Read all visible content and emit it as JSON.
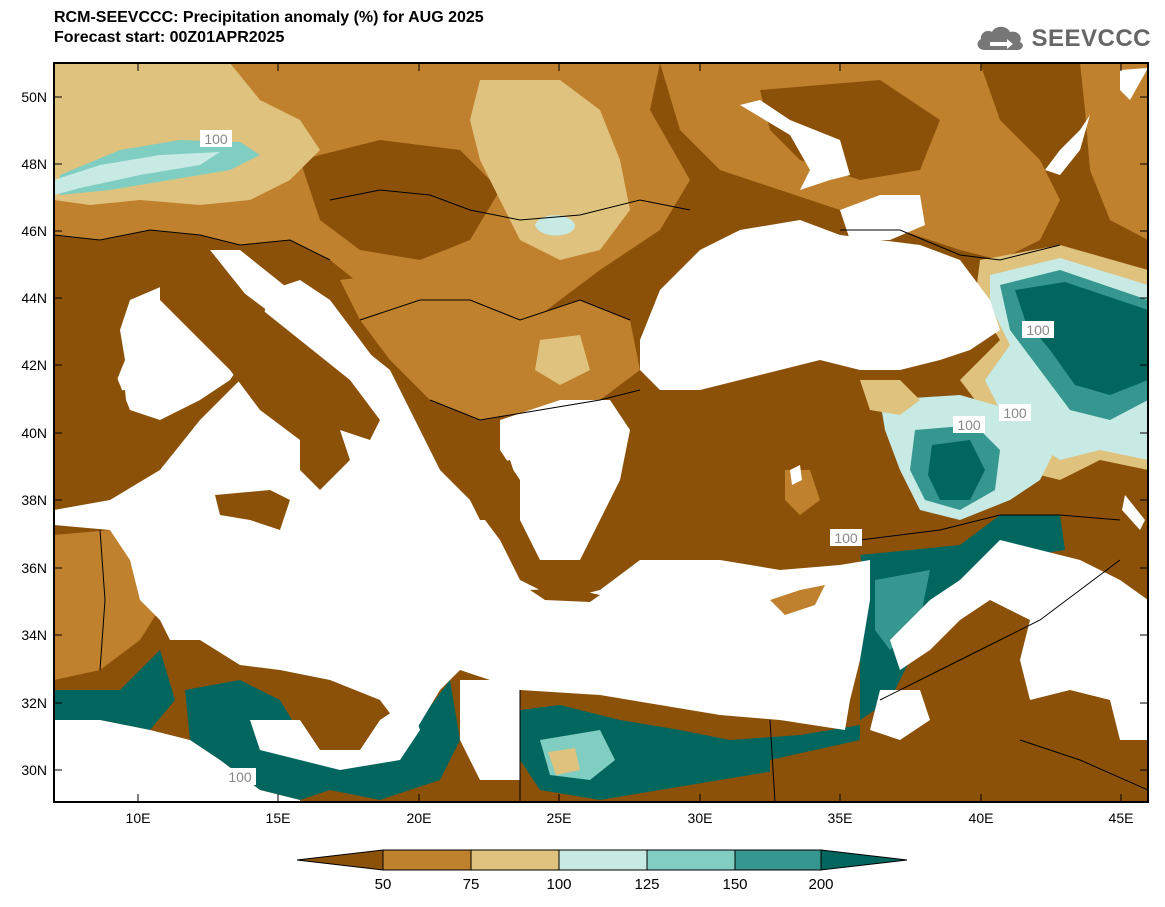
{
  "header": {
    "title_line1": "RCM-SEEVCCC: Precipitation anomaly (%) for AUG 2025",
    "title_line2": "Forecast start: 00Z01APR2025"
  },
  "logo": {
    "text": "SEEVCCC",
    "icon": "cloud-arrow-icon"
  },
  "map": {
    "lat_labels": [
      "50N",
      "48N",
      "46N",
      "44N",
      "42N",
      "40N",
      "38N",
      "36N",
      "34N",
      "32N",
      "30N"
    ],
    "lon_labels": [
      "10E",
      "15E",
      "20E",
      "25E",
      "30E",
      "35E",
      "40E",
      "45E"
    ],
    "contour_labels": [
      "100",
      "100",
      "100",
      "100",
      "100",
      "100"
    ]
  },
  "legend": {
    "ticks": [
      "50",
      "75",
      "100",
      "125",
      "150",
      "200"
    ],
    "colors": [
      "#8c5109",
      "#bf812d",
      "#dfc27d",
      "#c7eae5",
      "#80cdc1",
      "#35978f",
      "#01665e"
    ]
  },
  "palette": {
    "sea": "#ffffff",
    "dark_brown": "#8c5109",
    "brown": "#bf812d",
    "tan": "#dfc27d",
    "light_teal": "#c7eae5",
    "mid_teal": "#80cdc1",
    "teal": "#35978f",
    "dark_teal": "#01665e"
  }
}
